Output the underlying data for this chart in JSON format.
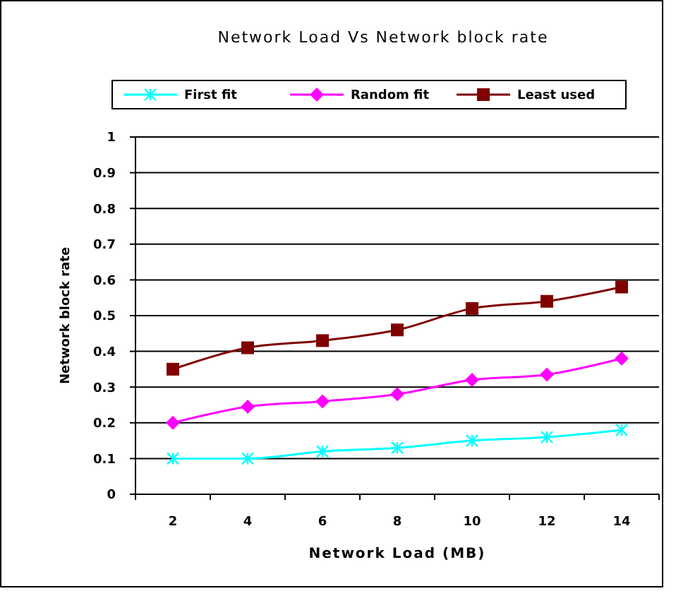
{
  "chart_data": {
    "type": "line",
    "title": "Network Load Vs Network block rate",
    "xlabel": "Network Load (MB)",
    "ylabel": "Network block rate",
    "categories": [
      "2",
      "4",
      "6",
      "8",
      "10",
      "12",
      "14"
    ],
    "series": [
      {
        "name": "First fit",
        "color": "#00ffff",
        "marker": "cross",
        "values": [
          0.1,
          0.1,
          0.12,
          0.13,
          0.15,
          0.16,
          0.18
        ]
      },
      {
        "name": "Random fit",
        "color": "#ff00ff",
        "marker": "diamond",
        "values": [
          0.2,
          0.245,
          0.26,
          0.28,
          0.32,
          0.335,
          0.38
        ]
      },
      {
        "name": "Least used",
        "color": "#800000",
        "marker": "square",
        "values": [
          0.35,
          0.41,
          0.43,
          0.46,
          0.52,
          0.54,
          0.58
        ]
      }
    ],
    "ylim": [
      0,
      1
    ],
    "yticks": [
      0,
      0.1,
      0.2,
      0.3,
      0.4,
      0.5,
      0.6,
      0.7,
      0.8,
      0.9,
      1
    ],
    "grid": "y",
    "legend": "top"
  }
}
